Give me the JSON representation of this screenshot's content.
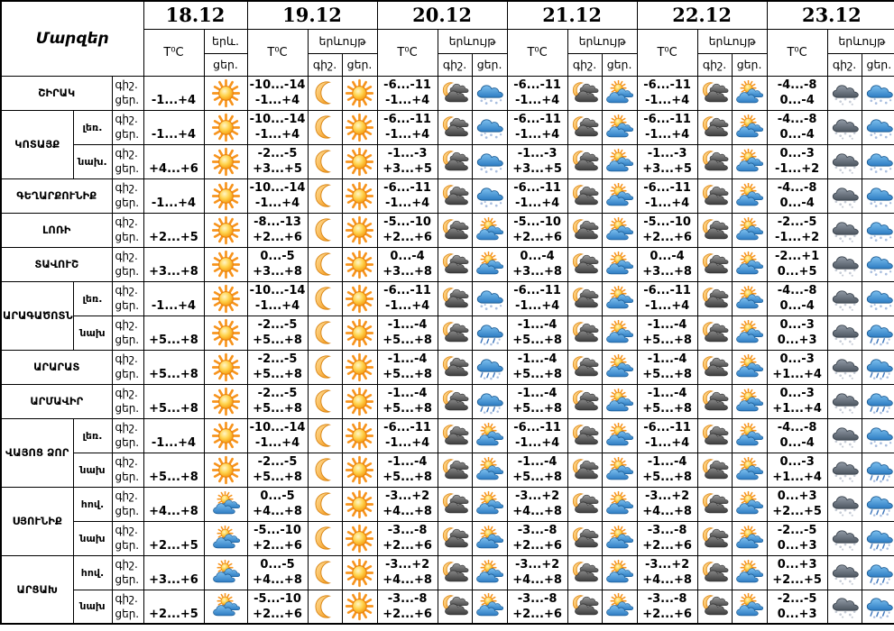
{
  "page": {
    "background": "#ffffff",
    "grid_color": "#000000",
    "text_color": "#000000"
  },
  "colors": {
    "sun": "#f7941d",
    "sun_core": "#ffd34d",
    "moon": "#f5a623",
    "cloud_gray_dark": "#4e4e4e",
    "cloud_blue": "#2d7cc2",
    "cloud_slate": "#4d5660",
    "snowflake_day": "#a9bedf",
    "snowflake_night": "#c6ccd6"
  },
  "table": {
    "corner_label": "Մարզեր",
    "dates": [
      "18.12",
      "19.12",
      "20.12",
      "21.12",
      "22.12",
      "23.12"
    ],
    "temp_header": "T⁰C",
    "phenomenon_header": "երևույթ",
    "night_label": "գիշ.",
    "day_label": "ցեր.",
    "first_day_phen_label": "երև.",
    "first_day_sub_label": "ցեր.",
    "icon_names": [
      "sun",
      "moon",
      "moon-cloud",
      "sun-cloud",
      "snow-day",
      "snow-night",
      "sleet-day"
    ],
    "rows": [
      {
        "region": "ՇԻՐԱԿ",
        "span": 1,
        "sub": null,
        "cells": [
          {
            "n": "",
            "d": "-1...+4",
            "ic": [
              "sun"
            ]
          },
          {
            "n": "-10...-14",
            "d": "-1...+4",
            "ic": [
              "moon",
              "sun"
            ]
          },
          {
            "n": "-6...-11",
            "d": "-1...+4",
            "ic": [
              "moon-cloud",
              "snow-day"
            ]
          },
          {
            "n": "-6...-11",
            "d": "-1...+4",
            "ic": [
              "moon-cloud",
              "sun-cloud"
            ]
          },
          {
            "n": "-6...-11",
            "d": "-1...+4",
            "ic": [
              "moon-cloud",
              "sun-cloud"
            ]
          },
          {
            "n": "-4...-8",
            "d": "0...-4",
            "ic": [
              "snow-night",
              "snow-day"
            ]
          }
        ]
      },
      {
        "region": "ԿՈՏԱՅՔ",
        "span": 2,
        "sub": "լեռ.",
        "cells": [
          {
            "n": "",
            "d": "-1...+4",
            "ic": [
              "sun"
            ]
          },
          {
            "n": "-10...-14",
            "d": "-1...+4",
            "ic": [
              "moon",
              "sun"
            ]
          },
          {
            "n": "-6...-11",
            "d": "-1...+4",
            "ic": [
              "moon-cloud",
              "snow-day"
            ]
          },
          {
            "n": "-6...-11",
            "d": "-1...+4",
            "ic": [
              "moon-cloud",
              "sun-cloud"
            ]
          },
          {
            "n": "-6...-11",
            "d": "-1...+4",
            "ic": [
              "moon-cloud",
              "sun-cloud"
            ]
          },
          {
            "n": "-4...-8",
            "d": "0...-4",
            "ic": [
              "snow-night",
              "snow-day"
            ]
          }
        ]
      },
      {
        "region": null,
        "span": 0,
        "sub": "նախ.",
        "cells": [
          {
            "n": "",
            "d": "+4...+6",
            "ic": [
              "sun"
            ]
          },
          {
            "n": "-2...-5",
            "d": "+3...+5",
            "ic": [
              "moon",
              "sun"
            ]
          },
          {
            "n": "-1...-3",
            "d": "+3...+5",
            "ic": [
              "moon-cloud",
              "snow-day"
            ]
          },
          {
            "n": "-1...-3",
            "d": "+3...+5",
            "ic": [
              "moon-cloud",
              "sun-cloud"
            ]
          },
          {
            "n": "-1...-3",
            "d": "+3...+5",
            "ic": [
              "moon-cloud",
              "sun-cloud"
            ]
          },
          {
            "n": "0...-3",
            "d": "-1...+2",
            "ic": [
              "snow-night",
              "snow-day"
            ]
          }
        ]
      },
      {
        "region": "ԳԵՂԱՐՔՈՒՆԻՔ",
        "span": 1,
        "sub": null,
        "cells": [
          {
            "n": "",
            "d": "-1...+4",
            "ic": [
              "sun"
            ]
          },
          {
            "n": "-10...-14",
            "d": "-1...+4",
            "ic": [
              "moon",
              "sun"
            ]
          },
          {
            "n": "-6...-11",
            "d": "-1...+4",
            "ic": [
              "moon-cloud",
              "snow-day"
            ]
          },
          {
            "n": "-6...-11",
            "d": "-1...+4",
            "ic": [
              "moon-cloud",
              "sun-cloud"
            ]
          },
          {
            "n": "-6...-11",
            "d": "-1...+4",
            "ic": [
              "moon-cloud",
              "sun-cloud"
            ]
          },
          {
            "n": "-4...-8",
            "d": "0...-4",
            "ic": [
              "snow-night",
              "snow-day"
            ]
          }
        ]
      },
      {
        "region": "ԼՈՌԻ",
        "span": 1,
        "sub": null,
        "cells": [
          {
            "n": "",
            "d": "+2...+5",
            "ic": [
              "sun"
            ]
          },
          {
            "n": "-8...-13",
            "d": "+2...+6",
            "ic": [
              "moon",
              "sun"
            ]
          },
          {
            "n": "-5...-10",
            "d": "+2...+6",
            "ic": [
              "moon-cloud",
              "sun-cloud"
            ]
          },
          {
            "n": "-5...-10",
            "d": "+2...+6",
            "ic": [
              "moon-cloud",
              "sun-cloud"
            ]
          },
          {
            "n": "-5...-10",
            "d": "+2...+6",
            "ic": [
              "moon-cloud",
              "sun-cloud"
            ]
          },
          {
            "n": "-2...-5",
            "d": "-1...+2",
            "ic": [
              "snow-night",
              "snow-day"
            ]
          }
        ]
      },
      {
        "region": "ՏԱՎՈՒՇ",
        "span": 1,
        "sub": null,
        "cells": [
          {
            "n": "",
            "d": "+3...+8",
            "ic": [
              "sun"
            ]
          },
          {
            "n": "0...-5",
            "d": "+3...+8",
            "ic": [
              "moon",
              "sun"
            ]
          },
          {
            "n": "0...-4",
            "d": "+3...+8",
            "ic": [
              "moon-cloud",
              "sun-cloud"
            ]
          },
          {
            "n": "0...-4",
            "d": "+3...+8",
            "ic": [
              "moon-cloud",
              "sun-cloud"
            ]
          },
          {
            "n": "0...-4",
            "d": "+3...+8",
            "ic": [
              "moon-cloud",
              "sun-cloud"
            ]
          },
          {
            "n": "-2...+1",
            "d": "0...+5",
            "ic": [
              "snow-night",
              "snow-day"
            ]
          }
        ]
      },
      {
        "region": "ԱՐԱԳԱԾՈՏՆ",
        "span": 2,
        "sub": "լեռ.",
        "cells": [
          {
            "n": "",
            "d": "-1...+4",
            "ic": [
              "sun"
            ]
          },
          {
            "n": "-10...-14",
            "d": "-1...+4",
            "ic": [
              "moon",
              "sun"
            ]
          },
          {
            "n": "-6...-11",
            "d": "-1...+4",
            "ic": [
              "moon-cloud",
              "snow-day"
            ]
          },
          {
            "n": "-6...-11",
            "d": "-1...+4",
            "ic": [
              "moon-cloud",
              "sun-cloud"
            ]
          },
          {
            "n": "-6...-11",
            "d": "-1...+4",
            "ic": [
              "moon-cloud",
              "sun-cloud"
            ]
          },
          {
            "n": "-4...-8",
            "d": "0...-4",
            "ic": [
              "snow-night",
              "snow-day"
            ]
          }
        ]
      },
      {
        "region": null,
        "span": 0,
        "sub": "նախ",
        "cells": [
          {
            "n": "",
            "d": "+5...+8",
            "ic": [
              "sun"
            ]
          },
          {
            "n": "-2...-5",
            "d": "+5...+8",
            "ic": [
              "moon",
              "sun"
            ]
          },
          {
            "n": "-1...-4",
            "d": "+5...+8",
            "ic": [
              "moon-cloud",
              "sleet-day"
            ]
          },
          {
            "n": "-1...-4",
            "d": "+5...+8",
            "ic": [
              "moon-cloud",
              "sun-cloud"
            ]
          },
          {
            "n": "-1...-4",
            "d": "+5...+8",
            "ic": [
              "moon-cloud",
              "sun-cloud"
            ]
          },
          {
            "n": "0...-3",
            "d": "0...+3",
            "ic": [
              "snow-night",
              "sleet-day"
            ]
          }
        ]
      },
      {
        "region": "ԱՐԱՐԱՏ",
        "span": 1,
        "sub": null,
        "cells": [
          {
            "n": "",
            "d": "+5...+8",
            "ic": [
              "sun"
            ]
          },
          {
            "n": "-2...-5",
            "d": "+5...+8",
            "ic": [
              "moon",
              "sun"
            ]
          },
          {
            "n": "-1...-4",
            "d": "+5...+8",
            "ic": [
              "moon-cloud",
              "sleet-day"
            ]
          },
          {
            "n": "-1...-4",
            "d": "+5...+8",
            "ic": [
              "moon-cloud",
              "sun-cloud"
            ]
          },
          {
            "n": "-1...-4",
            "d": "+5...+8",
            "ic": [
              "moon-cloud",
              "sun-cloud"
            ]
          },
          {
            "n": "0...-3",
            "d": "+1...+4",
            "ic": [
              "snow-night",
              "sleet-day"
            ]
          }
        ]
      },
      {
        "region": "ԱՐՄԱՎԻՐ",
        "span": 1,
        "sub": null,
        "cells": [
          {
            "n": "",
            "d": "+5...+8",
            "ic": [
              "sun"
            ]
          },
          {
            "n": "-2...-5",
            "d": "+5...+8",
            "ic": [
              "moon",
              "sun"
            ]
          },
          {
            "n": "-1...-4",
            "d": "+5...+8",
            "ic": [
              "moon-cloud",
              "sleet-day"
            ]
          },
          {
            "n": "-1...-4",
            "d": "+5...+8",
            "ic": [
              "moon-cloud",
              "sun-cloud"
            ]
          },
          {
            "n": "-1...-4",
            "d": "+5...+8",
            "ic": [
              "moon-cloud",
              "sun-cloud"
            ]
          },
          {
            "n": "0...-3",
            "d": "+1...+4",
            "ic": [
              "snow-night",
              "sleet-day"
            ]
          }
        ]
      },
      {
        "region": "ՎԱՅՈՑ ՁՈՐ",
        "span": 2,
        "sub": "լեռ.",
        "cells": [
          {
            "n": "",
            "d": "-1...+4",
            "ic": [
              "sun"
            ]
          },
          {
            "n": "-10...-14",
            "d": "-1...+4",
            "ic": [
              "moon",
              "sun"
            ]
          },
          {
            "n": "-6...-11",
            "d": "-1...+4",
            "ic": [
              "moon-cloud",
              "sun-cloud"
            ]
          },
          {
            "n": "-6...-11",
            "d": "-1...+4",
            "ic": [
              "moon-cloud",
              "sun-cloud"
            ]
          },
          {
            "n": "-6...-11",
            "d": "-1...+4",
            "ic": [
              "moon-cloud",
              "sun-cloud"
            ]
          },
          {
            "n": "-4...-8",
            "d": "0...-4",
            "ic": [
              "snow-night",
              "snow-day"
            ]
          }
        ]
      },
      {
        "region": null,
        "span": 0,
        "sub": "նախ",
        "cells": [
          {
            "n": "",
            "d": "+5...+8",
            "ic": [
              "sun"
            ]
          },
          {
            "n": "-2...-5",
            "d": "+5...+8",
            "ic": [
              "moon",
              "sun"
            ]
          },
          {
            "n": "-1...-4",
            "d": "+5...+8",
            "ic": [
              "moon-cloud",
              "sun-cloud"
            ]
          },
          {
            "n": "-1...-4",
            "d": "+5...+8",
            "ic": [
              "moon-cloud",
              "sun-cloud"
            ]
          },
          {
            "n": "-1...-4",
            "d": "+5...+8",
            "ic": [
              "moon-cloud",
              "sun-cloud"
            ]
          },
          {
            "n": "0...-3",
            "d": "+1...+4",
            "ic": [
              "snow-night",
              "sleet-day"
            ]
          }
        ]
      },
      {
        "region": "ՍՅՈՒՆԻՔ",
        "span": 2,
        "sub": "հով.",
        "cells": [
          {
            "n": "",
            "d": "+4...+8",
            "ic": [
              "sun-cloud"
            ]
          },
          {
            "n": "0...-5",
            "d": "+4...+8",
            "ic": [
              "moon",
              "sun"
            ]
          },
          {
            "n": "-3...+2",
            "d": "+4...+8",
            "ic": [
              "moon-cloud",
              "sun-cloud"
            ]
          },
          {
            "n": "-3...+2",
            "d": "+4...+8",
            "ic": [
              "moon-cloud",
              "sun-cloud"
            ]
          },
          {
            "n": "-3...+2",
            "d": "+4...+8",
            "ic": [
              "moon-cloud",
              "sun-cloud"
            ]
          },
          {
            "n": "0...+3",
            "d": "+2...+5",
            "ic": [
              "snow-night",
              "sleet-day"
            ]
          }
        ]
      },
      {
        "region": null,
        "span": 0,
        "sub": "նախ",
        "cells": [
          {
            "n": "",
            "d": "+2...+5",
            "ic": [
              "sun-cloud"
            ]
          },
          {
            "n": "-5...-10",
            "d": "+2...+6",
            "ic": [
              "moon",
              "sun"
            ]
          },
          {
            "n": "-3...-8",
            "d": "+2...+6",
            "ic": [
              "moon-cloud",
              "sun-cloud"
            ]
          },
          {
            "n": "-3...-8",
            "d": "+2...+6",
            "ic": [
              "moon-cloud",
              "sun-cloud"
            ]
          },
          {
            "n": "-3...-8",
            "d": "+2...+6",
            "ic": [
              "moon-cloud",
              "sun-cloud"
            ]
          },
          {
            "n": "-2...-5",
            "d": "0...+3",
            "ic": [
              "snow-night",
              "sleet-day"
            ]
          }
        ]
      },
      {
        "region": "ԱՐՑԱԽ",
        "span": 2,
        "sub": "հով.",
        "cells": [
          {
            "n": "",
            "d": "+3...+6",
            "ic": [
              "sun-cloud"
            ]
          },
          {
            "n": "0...-5",
            "d": "+4...+8",
            "ic": [
              "moon",
              "sun"
            ]
          },
          {
            "n": "-3...+2",
            "d": "+4...+8",
            "ic": [
              "moon-cloud",
              "sun-cloud"
            ]
          },
          {
            "n": "-3...+2",
            "d": "+4...+8",
            "ic": [
              "moon-cloud",
              "sun-cloud"
            ]
          },
          {
            "n": "-3...+2",
            "d": "+4...+8",
            "ic": [
              "moon-cloud",
              "sun-cloud"
            ]
          },
          {
            "n": "0...+3",
            "d": "+2...+5",
            "ic": [
              "snow-night",
              "sleet-day"
            ]
          }
        ]
      },
      {
        "region": null,
        "span": 0,
        "sub": "նախ",
        "cells": [
          {
            "n": "",
            "d": "+2...+5",
            "ic": [
              "sun-cloud"
            ]
          },
          {
            "n": "-5...-10",
            "d": "+2...+6",
            "ic": [
              "moon",
              "sun"
            ]
          },
          {
            "n": "-3...-8",
            "d": "+2...+6",
            "ic": [
              "moon-cloud",
              "sun-cloud"
            ]
          },
          {
            "n": "-3...-8",
            "d": "+2...+6",
            "ic": [
              "moon-cloud",
              "sun-cloud"
            ]
          },
          {
            "n": "-3...-8",
            "d": "+2...+6",
            "ic": [
              "moon-cloud",
              "sun-cloud"
            ]
          },
          {
            "n": "-2...-5",
            "d": "0...+3",
            "ic": [
              "snow-night",
              "sleet-day"
            ]
          }
        ]
      }
    ]
  }
}
